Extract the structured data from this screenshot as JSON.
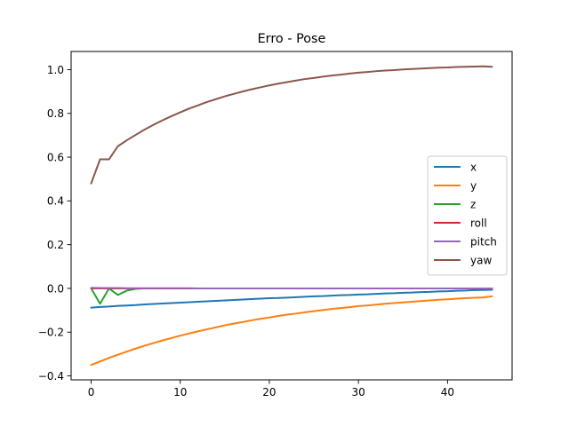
{
  "chart_data": {
    "type": "line",
    "title": "Erro - Pose",
    "xlabel": "",
    "ylabel": "",
    "xlim": [
      -2.25,
      47.25
    ],
    "ylim": [
      -0.418,
      1.083
    ],
    "x_ticks": [
      0,
      10,
      20,
      30,
      40
    ],
    "y_ticks": [
      -0.4,
      -0.2,
      0.0,
      0.2,
      0.4,
      0.6,
      0.8,
      1.0
    ],
    "y_tick_labels": [
      "−0.4",
      "−0.2",
      "0.0",
      "0.2",
      "0.4",
      "0.6",
      "0.8",
      "1.0"
    ],
    "grid": false,
    "legend_position": "center-right",
    "x": [
      0,
      1,
      2,
      3,
      4,
      5,
      6,
      7,
      8,
      9,
      10,
      11,
      12,
      13,
      14,
      15,
      16,
      17,
      18,
      19,
      20,
      21,
      22,
      23,
      24,
      25,
      26,
      27,
      28,
      29,
      30,
      31,
      32,
      33,
      34,
      35,
      36,
      37,
      38,
      39,
      40,
      41,
      42,
      43,
      44,
      45
    ],
    "series": [
      {
        "name": "x",
        "color": "#1f77b4",
        "values": [
          -0.088,
          -0.085,
          -0.083,
          -0.08,
          -0.078,
          -0.076,
          -0.073,
          -0.071,
          -0.069,
          -0.067,
          -0.065,
          -0.063,
          -0.061,
          -0.059,
          -0.057,
          -0.055,
          -0.053,
          -0.051,
          -0.049,
          -0.047,
          -0.045,
          -0.044,
          -0.042,
          -0.04,
          -0.038,
          -0.036,
          -0.035,
          -0.033,
          -0.031,
          -0.03,
          -0.028,
          -0.027,
          -0.025,
          -0.023,
          -0.022,
          -0.02,
          -0.019,
          -0.017,
          -0.016,
          -0.014,
          -0.013,
          -0.011,
          -0.01,
          -0.008,
          -0.007,
          -0.006
        ]
      },
      {
        "name": "y",
        "color": "#ff7f0e",
        "values": [
          -0.35,
          -0.334,
          -0.318,
          -0.303,
          -0.289,
          -0.275,
          -0.262,
          -0.25,
          -0.238,
          -0.227,
          -0.216,
          -0.206,
          -0.196,
          -0.187,
          -0.178,
          -0.169,
          -0.161,
          -0.154,
          -0.146,
          -0.139,
          -0.133,
          -0.126,
          -0.12,
          -0.115,
          -0.109,
          -0.104,
          -0.099,
          -0.094,
          -0.09,
          -0.086,
          -0.081,
          -0.078,
          -0.074,
          -0.07,
          -0.067,
          -0.064,
          -0.061,
          -0.058,
          -0.055,
          -0.052,
          -0.05,
          -0.047,
          -0.045,
          -0.043,
          -0.041,
          -0.036
        ]
      },
      {
        "name": "z",
        "color": "#2ca02c",
        "values": [
          0.0,
          -0.07,
          0.0,
          -0.03,
          -0.01,
          -0.002,
          0,
          0,
          0,
          0,
          0,
          0,
          0,
          0,
          0,
          0,
          0,
          0,
          0,
          0,
          0,
          0,
          0,
          0,
          0,
          0,
          0,
          0,
          0,
          0,
          0,
          0,
          0,
          0,
          0,
          0,
          0,
          0,
          0,
          0,
          0,
          0,
          0,
          0,
          0,
          0
        ]
      },
      {
        "name": "roll",
        "color": "#d62728",
        "values": [
          0,
          0,
          0,
          0,
          0,
          0,
          0,
          0,
          0,
          0,
          0,
          0,
          0,
          0,
          0,
          0,
          0,
          0,
          0,
          0,
          0,
          0,
          0,
          0,
          0,
          0,
          0,
          0,
          0,
          0,
          0,
          0,
          0,
          0,
          0,
          0,
          0,
          0,
          0,
          0,
          0,
          0,
          0,
          0,
          0,
          0
        ]
      },
      {
        "name": "pitch",
        "color": "#9467bd",
        "values": [
          0.003,
          0.002,
          0.002,
          0.002,
          0.001,
          0.001,
          0.001,
          0.001,
          0.001,
          0.001,
          0.001,
          0.001,
          0.0,
          0.0,
          0.0,
          0.0,
          0.0,
          0.0,
          0.0,
          0.0,
          0.0,
          0.0,
          0.0,
          0.0,
          0.0,
          0.0,
          0.0,
          0.0,
          0.0,
          0.0,
          0.0,
          0.0,
          0.0,
          0.0,
          0.0,
          0.0,
          0.0,
          0.0,
          0.0,
          0.0,
          0.0,
          0.0,
          0.0,
          0.0,
          0.0,
          0.0
        ]
      },
      {
        "name": "yaw",
        "color": "#8c564b",
        "values": [
          0.48,
          0.59,
          0.59,
          0.65,
          0.677,
          0.702,
          0.726,
          0.748,
          0.768,
          0.787,
          0.805,
          0.822,
          0.837,
          0.852,
          0.865,
          0.878,
          0.889,
          0.9,
          0.91,
          0.919,
          0.928,
          0.936,
          0.943,
          0.95,
          0.957,
          0.962,
          0.968,
          0.973,
          0.977,
          0.982,
          0.986,
          0.989,
          0.993,
          0.996,
          0.998,
          1.001,
          1.003,
          1.005,
          1.007,
          1.009,
          1.01,
          1.012,
          1.013,
          1.014,
          1.015,
          1.013
        ]
      }
    ]
  }
}
